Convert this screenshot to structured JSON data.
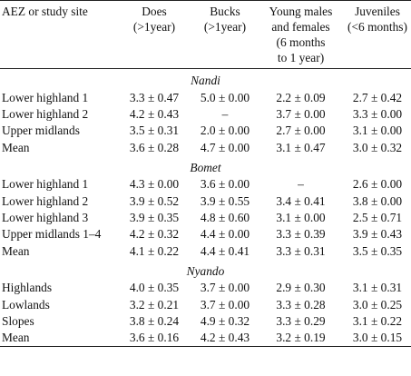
{
  "headers": [
    "AEZ or study site",
    "Does\n(>1year)",
    "Bucks\n(>1year)",
    "Young males\nand females\n(6 months\nto 1 year)",
    "Juveniles\n(<6 months)"
  ],
  "sections": [
    {
      "name": "Nandi",
      "rows": [
        {
          "site": "Lower highland 1",
          "does": "3.3 ± 0.47",
          "bucks": "5.0 ± 0.00",
          "young": "2.2 ± 0.09",
          "juveniles": "2.7 ± 0.42"
        },
        {
          "site": "Lower highland 2",
          "does": "4.2 ± 0.43",
          "bucks": "–",
          "young": "3.7 ± 0.00",
          "juveniles": "3.3 ± 0.00"
        },
        {
          "site": "Upper midlands",
          "does": "3.5 ± 0.31",
          "bucks": "2.0 ± 0.00",
          "young": "2.7 ± 0.00",
          "juveniles": "3.1 ± 0.00"
        },
        {
          "site": "Mean",
          "does": "3.6 ± 0.28",
          "bucks": "4.7 ± 0.00",
          "young": "3.1 ± 0.47",
          "juveniles": "3.0 ± 0.32"
        }
      ]
    },
    {
      "name": "Bomet",
      "rows": [
        {
          "site": "Lower highland 1",
          "does": "4.3 ± 0.00",
          "bucks": "3.6 ± 0.00",
          "young": "–",
          "juveniles": "2.6 ± 0.00"
        },
        {
          "site": "Lower highland 2",
          "does": "3.9 ± 0.52",
          "bucks": "3.9 ± 0.55",
          "young": "3.4 ± 0.41",
          "juveniles": "3.8 ± 0.00"
        },
        {
          "site": "Lower highland 3",
          "does": "3.9 ± 0.35",
          "bucks": "4.8 ± 0.60",
          "young": "3.1 ± 0.00",
          "juveniles": "2.5 ± 0.71"
        },
        {
          "site": "Upper midlands 1–4",
          "does": "4.2 ± 0.32",
          "bucks": "4.4 ± 0.00",
          "young": "3.3 ± 0.39",
          "juveniles": "3.9 ± 0.43"
        },
        {
          "site": "Mean",
          "does": "4.1 ± 0.22",
          "bucks": "4.4 ± 0.41",
          "young": "3.3 ± 0.31",
          "juveniles": "3.5 ± 0.35"
        }
      ]
    },
    {
      "name": "Nyando",
      "rows": [
        {
          "site": "Highlands",
          "does": "4.0 ± 0.35",
          "bucks": "3.7 ± 0.00",
          "young": "2.9 ± 0.30",
          "juveniles": "3.1 ± 0.31"
        },
        {
          "site": "Lowlands",
          "does": "3.2 ± 0.21",
          "bucks": "3.7 ± 0.00",
          "young": "3.3 ± 0.28",
          "juveniles": "3.0 ± 0.25"
        },
        {
          "site": "Slopes",
          "does": "3.8 ± 0.24",
          "bucks": "4.9 ± 0.32",
          "young": "3.3 ± 0.29",
          "juveniles": "3.1 ± 0.22"
        },
        {
          "site": "Mean",
          "does": "3.6 ± 0.16",
          "bucks": "4.2 ± 0.43",
          "young": "3.2 ± 0.19",
          "juveniles": "3.0 ± 0.15"
        }
      ]
    }
  ]
}
